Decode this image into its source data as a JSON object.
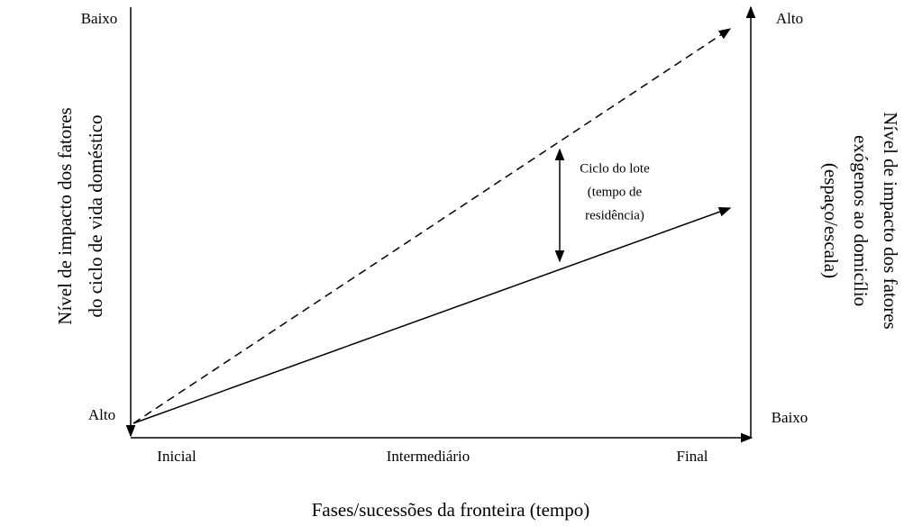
{
  "left_axis": {
    "title": [
      "Nível de impacto dos fatores",
      "do ciclo de vida doméstico"
    ],
    "top_label": "Baixo",
    "bottom_label": "Alto"
  },
  "right_axis": {
    "title": [
      "Nível de impacto dos fatores",
      "exógenos ao domicílio",
      "(espaço/escala)"
    ],
    "top_label": "Alto",
    "bottom_label": "Baixo"
  },
  "x_axis": {
    "labels": [
      "Inicial",
      "Intermediário",
      "Final"
    ],
    "title": "Fases/sucessões da fronteira (tempo)"
  },
  "annotation": [
    "Ciclo do lote",
    "(tempo de",
    "residência)"
  ]
}
